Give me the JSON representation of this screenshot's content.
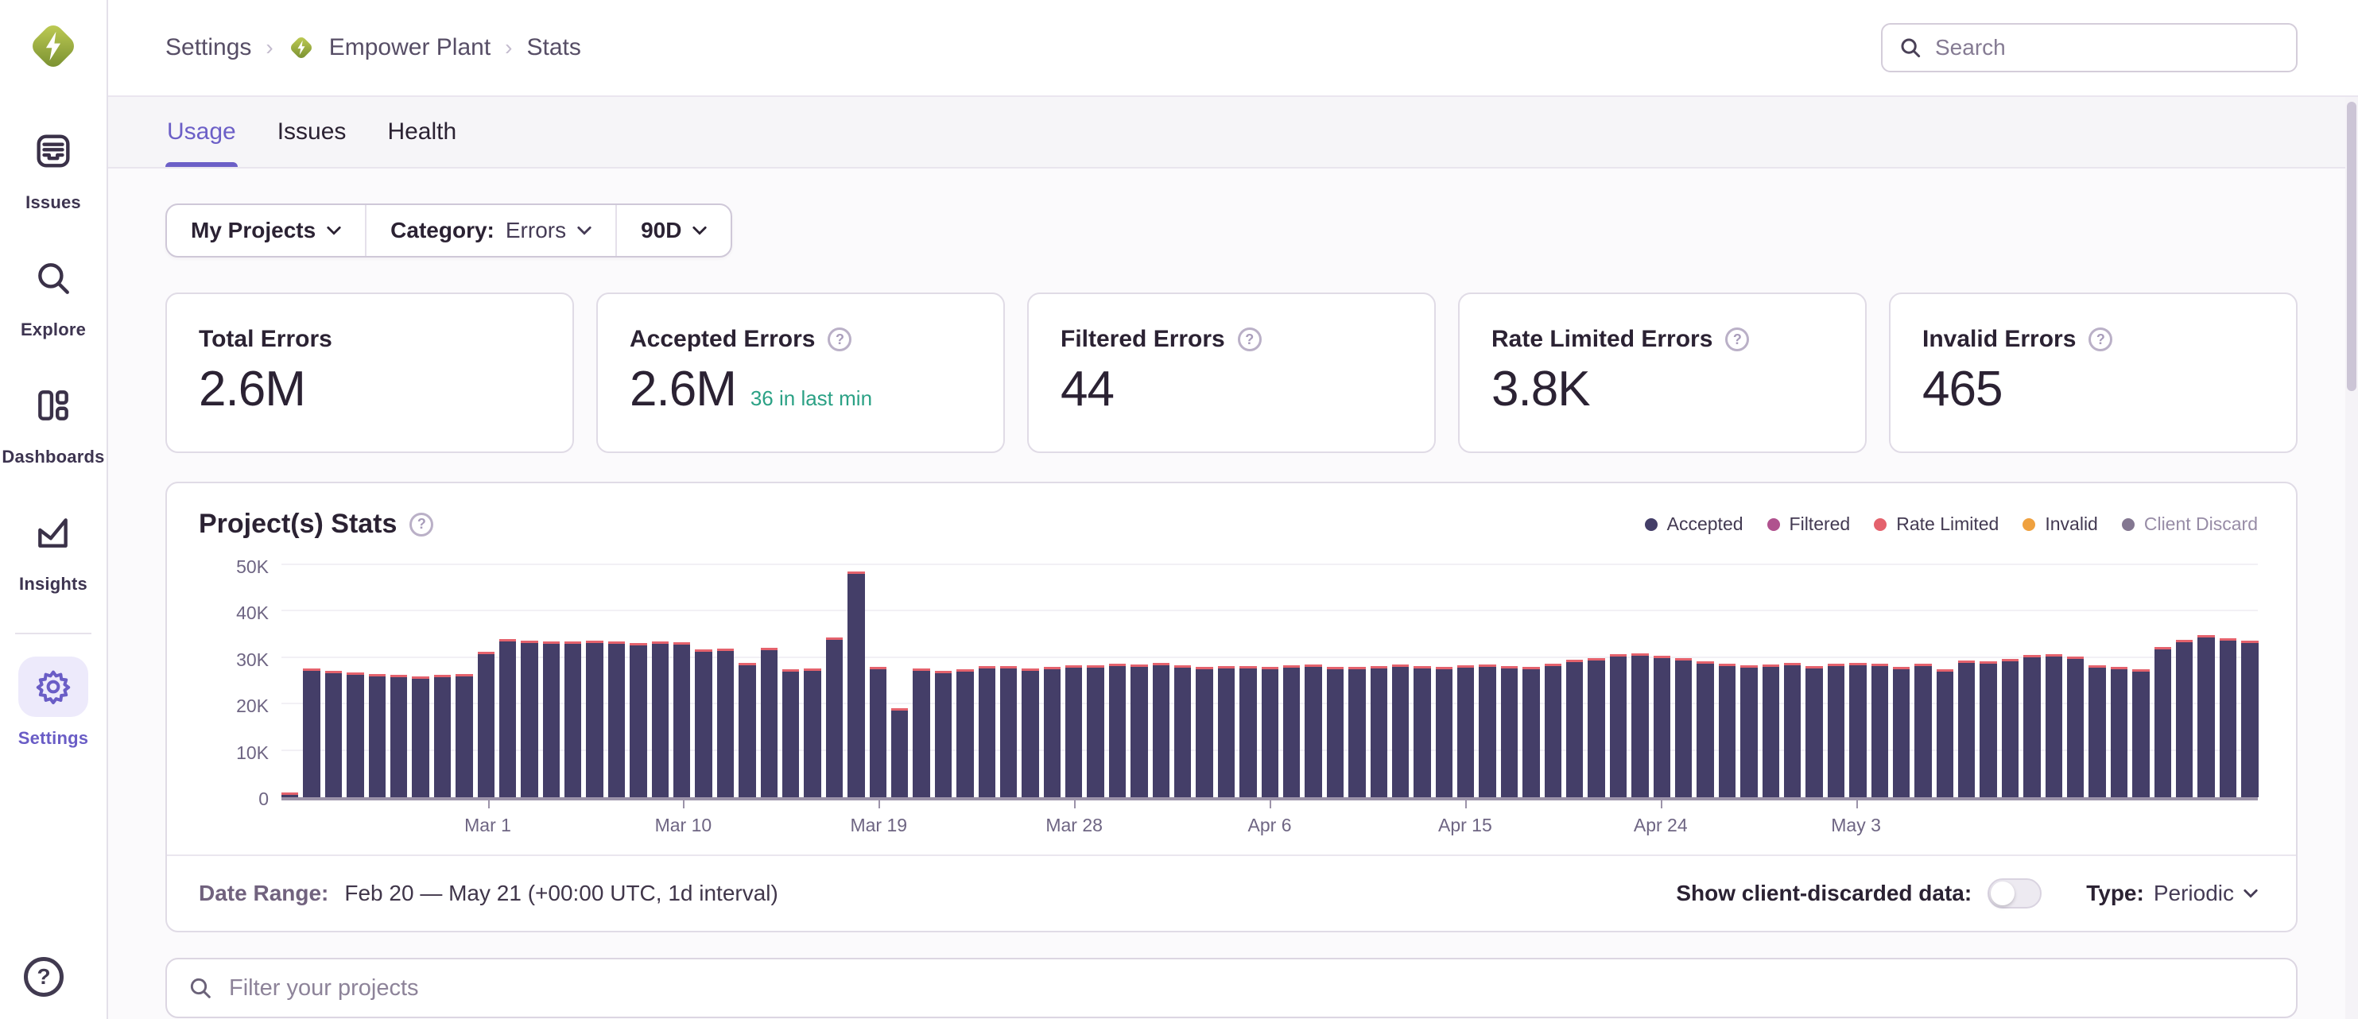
{
  "sidebar": {
    "items": [
      {
        "label": "Issues"
      },
      {
        "label": "Explore"
      },
      {
        "label": "Dashboards"
      },
      {
        "label": "Insights"
      },
      {
        "label": "Settings",
        "active": true
      }
    ]
  },
  "header": {
    "breadcrumb": {
      "level1": "Settings",
      "level2": "Empower Plant",
      "level3": "Stats"
    },
    "search_placeholder": "Search"
  },
  "tabs": [
    {
      "label": "Usage",
      "active": true
    },
    {
      "label": "Issues",
      "active": false
    },
    {
      "label": "Health",
      "active": false
    }
  ],
  "filters": {
    "projects_label": "My Projects",
    "category_label": "Category:",
    "category_value": "Errors",
    "period_value": "90D"
  },
  "cards": [
    {
      "label": "Total Errors",
      "value": "2.6M"
    },
    {
      "label": "Accepted Errors",
      "value": "2.6M",
      "sub": "36 in last min"
    },
    {
      "label": "Filtered Errors",
      "value": "44"
    },
    {
      "label": "Rate Limited Errors",
      "value": "3.8K"
    },
    {
      "label": "Invalid Errors",
      "value": "465"
    }
  ],
  "chart": {
    "title": "Project(s) Stats",
    "footer": {
      "date_range_label": "Date Range:",
      "date_range_value": "Feb 20 — May 21 (+00:00 UTC, 1d interval)",
      "toggle_label": "Show client-discarded data:",
      "type_label": "Type:",
      "type_value": "Periodic"
    }
  },
  "project_filter": {
    "placeholder": "Filter your projects"
  },
  "colors": {
    "accent_purple": "#6c5fc7",
    "success_green": "#2ba185",
    "logo_green_light": "#c3cf56",
    "logo_green_dark": "#758d2f"
  },
  "chart_data": {
    "type": "bar",
    "stacked": true,
    "title": "Project(s) Stats",
    "x_unit": "day",
    "x_range": [
      "Feb 20",
      "May 21"
    ],
    "ylim_k": [
      0,
      50
    ],
    "y_ticks_k": [
      0,
      10,
      20,
      30,
      40,
      50
    ],
    "y_tick_labels": [
      "0",
      "10K",
      "20K",
      "30K",
      "40K",
      "50K"
    ],
    "x_ticks": [
      {
        "label": "Mar 1",
        "day": 9
      },
      {
        "label": "Mar 10",
        "day": 18
      },
      {
        "label": "Mar 19",
        "day": 27
      },
      {
        "label": "Mar 28",
        "day": 36
      },
      {
        "label": "Apr 6",
        "day": 45
      },
      {
        "label": "Apr 15",
        "day": 54
      },
      {
        "label": "Apr 24",
        "day": 63
      },
      {
        "label": "May 3",
        "day": 72
      }
    ],
    "legend": [
      {
        "label": "Accepted",
        "color": "#443e68",
        "muted": false
      },
      {
        "label": "Filtered",
        "color": "#b0528e",
        "muted": false
      },
      {
        "label": "Rate Limited",
        "color": "#e4626d",
        "muted": false
      },
      {
        "label": "Invalid",
        "color": "#efa13f",
        "muted": false
      },
      {
        "label": "Client Discard",
        "color": "#837791",
        "muted": true
      }
    ],
    "series": [
      {
        "name": "Accepted",
        "unit": "K errors/day",
        "values_k": [
          0.5,
          27.2,
          26.8,
          26.4,
          26.0,
          25.8,
          25.6,
          25.9,
          26.0,
          30.8,
          33.6,
          33.2,
          33.1,
          33.0,
          33.2,
          33.1,
          32.7,
          33.1,
          32.8,
          31.4,
          31.5,
          28.5,
          31.7,
          27.0,
          27.2,
          33.9,
          48.2,
          27.5,
          18.6,
          27.3,
          26.8,
          27.1,
          27.7,
          27.8,
          27.3,
          27.5,
          27.9,
          27.9,
          28.3,
          28.1,
          28.4,
          27.9,
          27.5,
          27.8,
          27.7,
          27.5,
          27.9,
          28.0,
          27.6,
          27.5,
          27.8,
          28.0,
          27.7,
          27.5,
          27.9,
          28.1,
          27.8,
          27.5,
          28.3,
          29.1,
          29.5,
          30.3,
          30.4,
          30.0,
          29.4,
          28.7,
          28.2,
          27.9,
          28.1,
          28.4,
          27.7,
          28.2,
          28.5,
          28.2,
          27.6,
          28.2,
          27.1,
          28.9,
          28.8,
          29.3,
          30.2,
          30.3,
          29.8,
          27.9,
          27.6,
          27.0,
          31.8,
          33.4,
          34.5,
          33.7,
          33.2
        ]
      },
      {
        "name": "Rate Limited",
        "unit": "K errors/day",
        "constant_value_k": 0.5
      }
    ]
  }
}
